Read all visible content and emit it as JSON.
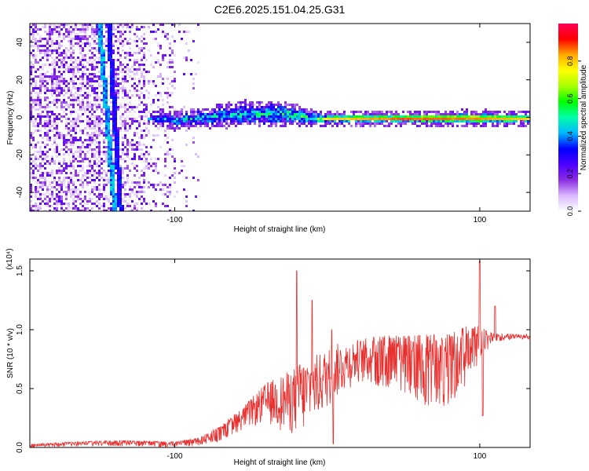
{
  "title": "C2E6.2025.151.04.25.G31",
  "chart_data": [
    {
      "type": "heatmap",
      "xlabel": "Height of straight line (km)",
      "ylabel": "Frequency (Hz)",
      "xlim": [
        -195,
        133
      ],
      "ylim": [
        -50,
        50
      ],
      "x_ticks": [
        -100,
        100
      ],
      "y_ticks": [
        -40,
        -20,
        0,
        20,
        40
      ],
      "grid": false,
      "colorbar": {
        "label": "Normalized spectral amplitude",
        "range": [
          0,
          1
        ],
        "ticks": [
          0.0,
          0.2,
          0.4,
          0.6,
          0.8
        ],
        "colormap": [
          "#ffffff",
          "#d9b8ff",
          "#8a2be2",
          "#4b00ff",
          "#0000ff",
          "#00b8ff",
          "#00ffaa",
          "#00ff00",
          "#aaff00",
          "#ffff00",
          "#ffaa00",
          "#ff0000",
          "#ff0055"
        ]
      },
      "features": {
        "diagonal_streaks": [
          {
            "x_at_top": -144,
            "x_at_bottom": -136,
            "amplitude": 0.25
          },
          {
            "x_at_top": -150,
            "x_at_bottom": -140,
            "amplitude": 0.35
          }
        ],
        "central_band": [
          {
            "x": -118,
            "f_center": 0,
            "f_halfwidth": 1.0,
            "amplitude": 0.35
          },
          {
            "x": -100,
            "f_center": -1.0,
            "f_halfwidth": 2.5,
            "amplitude": 0.4
          },
          {
            "x": -80,
            "f_center": 0.5,
            "f_halfwidth": 3.0,
            "amplitude": 0.4
          },
          {
            "x": -60,
            "f_center": 2.0,
            "f_halfwidth": 4.0,
            "amplitude": 0.4
          },
          {
            "x": -40,
            "f_center": 2.5,
            "f_halfwidth": 4.5,
            "amplitude": 0.45
          },
          {
            "x": -20,
            "f_center": 1.5,
            "f_halfwidth": 3.0,
            "amplitude": 0.5
          },
          {
            "x": -10,
            "f_center": 0,
            "f_halfwidth": 2.5,
            "amplitude": 0.5
          },
          {
            "x": 0,
            "f_center": 0,
            "f_halfwidth": 1.5,
            "amplitude": 0.85
          },
          {
            "x": 50,
            "f_center": 0,
            "f_halfwidth": 1.5,
            "amplitude": 0.95
          },
          {
            "x": 100,
            "f_center": 0,
            "f_halfwidth": 2.0,
            "amplitude": 0.9
          },
          {
            "x": 133,
            "f_center": 0,
            "f_halfwidth": 1.5,
            "amplitude": 0.85
          }
        ]
      }
    },
    {
      "type": "line",
      "xlabel": "Height of straight line (km)",
      "ylabel": "SNR (10 * v/v)",
      "yscale_label": "(x10⁴)",
      "xlim": [
        -195,
        133
      ],
      "ylim": [
        0,
        1.6
      ],
      "x_ticks": [
        -100,
        100
      ],
      "y_ticks": [
        0.0,
        0.5,
        1.0,
        1.5
      ],
      "grid": false,
      "series": [
        {
          "color": "#e8302f",
          "envelope": {
            "x": [
              -195,
              -160,
              -140,
              -100,
              -85,
              -70,
              -55,
              -40,
              -25,
              -15,
              -5,
              5,
              20,
              35,
              50,
              65,
              80,
              95,
              110,
              133
            ],
            "lower": [
              0.0,
              0.01,
              0.01,
              0.0,
              0.01,
              0.05,
              0.15,
              0.2,
              0.1,
              0.1,
              0.25,
              0.4,
              0.55,
              0.5,
              0.45,
              0.35,
              0.35,
              0.6,
              0.9,
              0.92
            ],
            "upper": [
              0.03,
              0.05,
              0.06,
              0.05,
              0.08,
              0.18,
              0.35,
              0.55,
              0.65,
              0.75,
              0.8,
              0.88,
              0.92,
              0.95,
              0.95,
              0.96,
              0.97,
              1.05,
              0.97,
              0.96
            ]
          },
          "spikes": [
            {
              "x": -20,
              "y": 1.5
            },
            {
              "x": -18,
              "y": 0.7
            },
            {
              "x": -10,
              "y": 1.25
            },
            {
              "x": 3,
              "y": 1.0
            },
            {
              "x": 4,
              "y": 0.03
            },
            {
              "x": 100,
              "y": 1.58
            },
            {
              "x": 102,
              "y": 0.27
            },
            {
              "x": 110,
              "y": 1.2
            }
          ]
        }
      ]
    }
  ]
}
